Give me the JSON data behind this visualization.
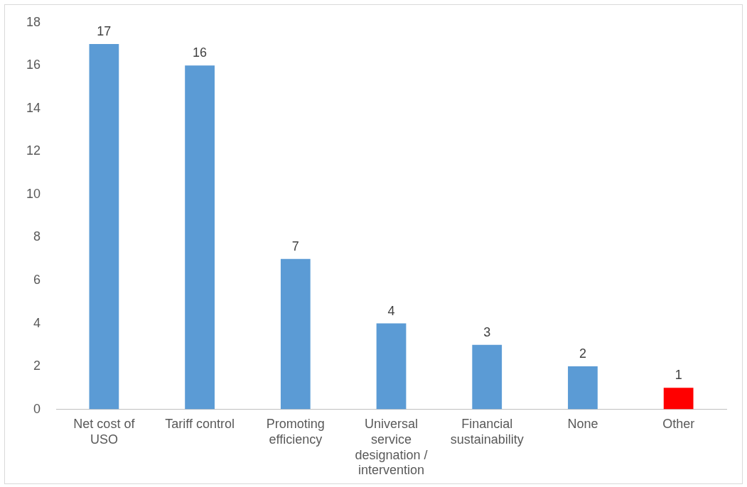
{
  "chart_data": {
    "type": "bar",
    "categories": [
      "Net cost of USO",
      "Tariff control",
      "Promoting efficiency",
      "Universal service designation / intervention",
      "Financial sustainability",
      "None",
      "Other"
    ],
    "values": [
      17,
      16,
      7,
      4,
      3,
      2,
      1
    ],
    "colors": [
      "#5b9bd5",
      "#5b9bd5",
      "#5b9bd5",
      "#5b9bd5",
      "#5b9bd5",
      "#5b9bd5",
      "#ff0000"
    ],
    "ylim": [
      0,
      18
    ],
    "yticks": [
      0,
      2,
      4,
      6,
      8,
      10,
      12,
      14,
      16,
      18
    ],
    "data_labels": true,
    "legend": false,
    "grid": false
  }
}
